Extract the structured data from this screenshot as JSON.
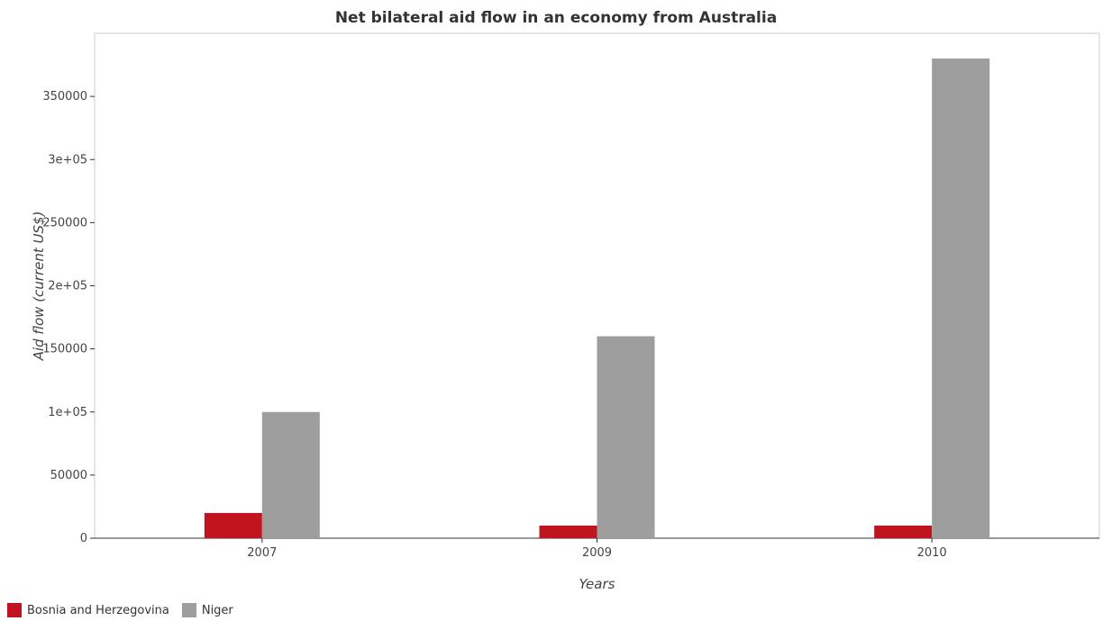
{
  "title": "Net bilateral aid flow in an economy from Australia",
  "chart_data": {
    "type": "bar",
    "title": "Net bilateral aid flow in an economy from Australia",
    "xlabel": "Years",
    "ylabel": "Aid flow (current US$)",
    "categories": [
      "2007",
      "2009",
      "2010"
    ],
    "series": [
      {
        "name": "Bosnia and Herzegovina",
        "color": "#c0141f",
        "values": [
          20000,
          10000,
          10000
        ]
      },
      {
        "name": "Niger",
        "color": "#9e9e9e",
        "values": [
          100000,
          160000,
          380000
        ]
      }
    ],
    "ylim": [
      0,
      400000
    ],
    "yticks": [
      0,
      50000,
      100000,
      150000,
      200000,
      250000,
      300000,
      350000
    ],
    "ytick_labels": [
      "0",
      "50000",
      "1e+05",
      "150000",
      "2e+05",
      "250000",
      "3e+05",
      "350000"
    ],
    "grid": false,
    "legend": "bottom-left"
  }
}
